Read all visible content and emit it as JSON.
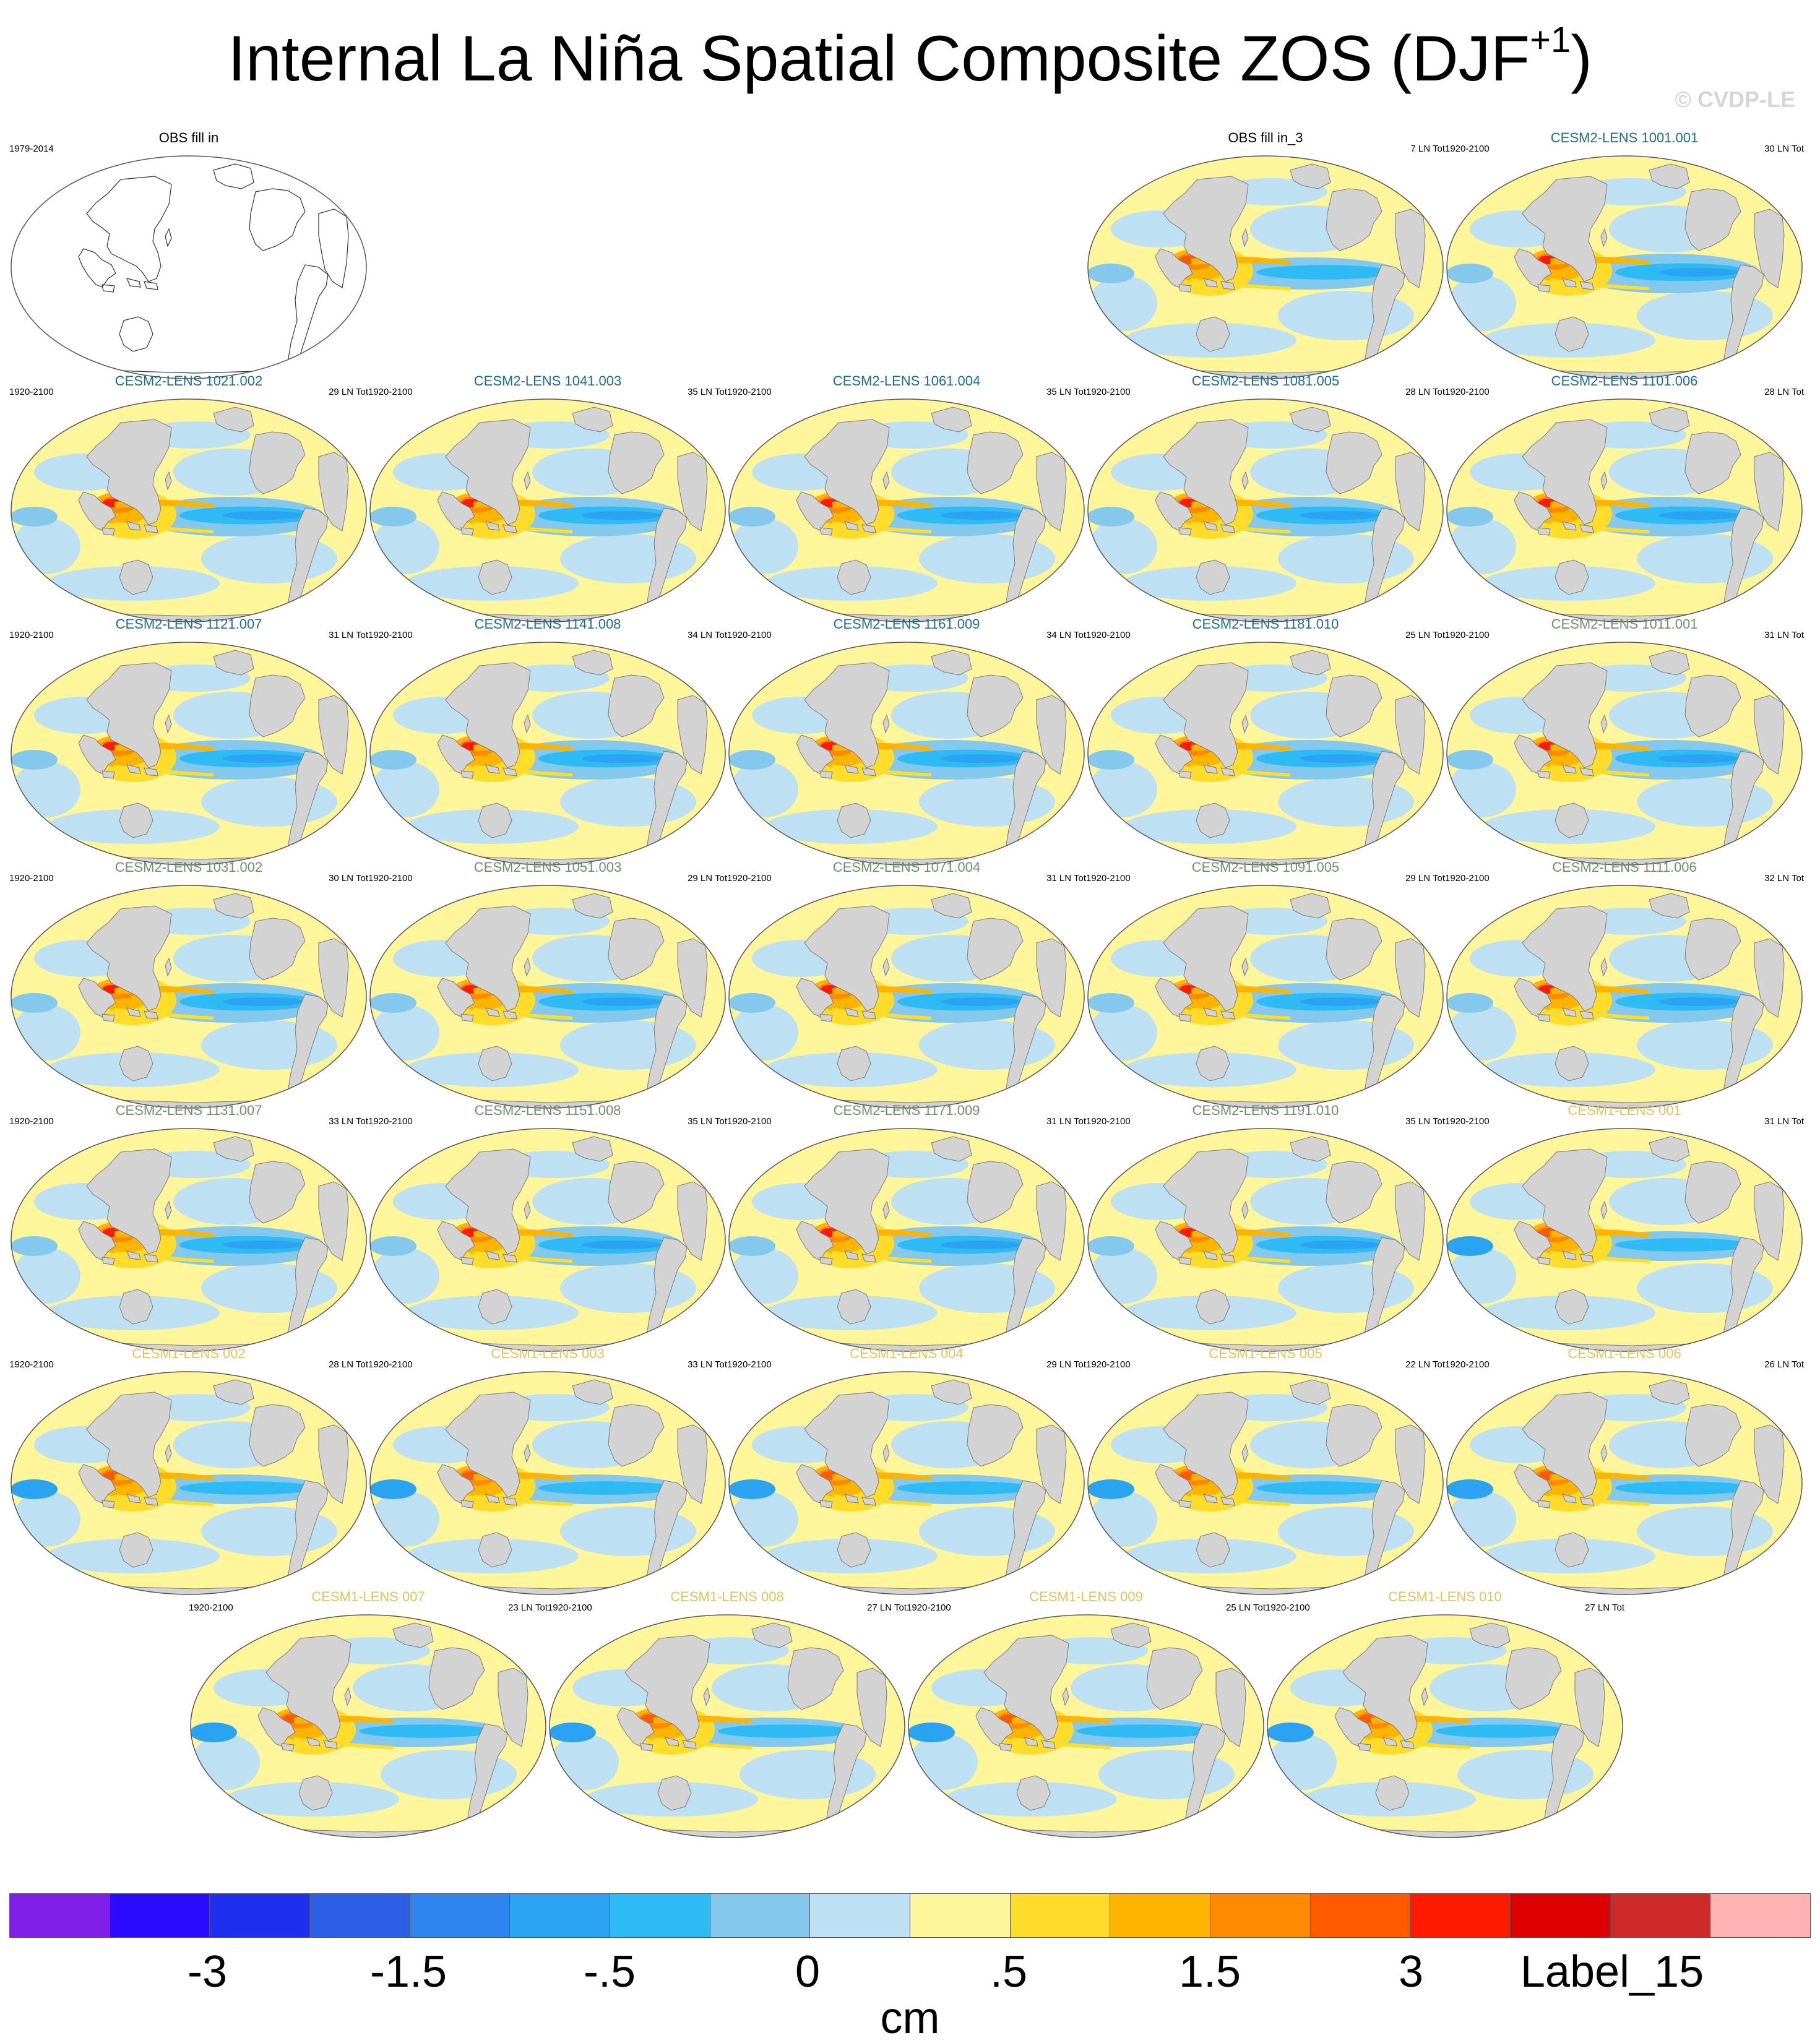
{
  "title": {
    "text": "Internal La Niña Spatial Composite ZOS (DJF",
    "sup": "+1",
    "suffix": ")"
  },
  "copyright": "© CVDP-LE",
  "units": "cm",
  "chart_data": {
    "type": "heatmap",
    "title": "Internal La Niña Spatial Composite ZOS (DJF+1)",
    "units": "cm",
    "colorbar": {
      "tick_labels": [
        "-3",
        "-1.5",
        "-.5",
        "0",
        ".5",
        "1.5",
        "3",
        "Label_15"
      ],
      "colors": [
        "#7f1fe8",
        "#2a0bff",
        "#1e2ff0",
        "#2d5fe6",
        "#2e85ef",
        "#2aa3f3",
        "#2dbaf5",
        "#85c8ee",
        "#bde0f2",
        "#fff59a",
        "#ffdd2a",
        "#ffb400",
        "#ff8a00",
        "#ff5a00",
        "#ff1a00",
        "#dd0000",
        "#cf2a2a",
        "#ffb2b2"
      ]
    },
    "panels": [
      {
        "title": "OBS fill in",
        "period": "1979-2014",
        "count": "",
        "title_color": "#000000",
        "style": "empty"
      },
      {
        "title": "OBS fill in_3",
        "period": "",
        "count": "7 LN Tot",
        "title_color": "#000000",
        "style": "obs"
      },
      {
        "title": "CESM2-LENS 1001.001",
        "period": "1920-2100",
        "count": "30 LN Tot",
        "title_color": "#1b6f8f",
        "style": "c2"
      },
      {
        "title": "CESM2-LENS 1021.002",
        "period": "1920-2100",
        "count": "29 LN Tot",
        "title_color": "#1b6f8f",
        "style": "c2"
      },
      {
        "title": "CESM2-LENS 1041.003",
        "period": "1920-2100",
        "count": "35 LN Tot",
        "title_color": "#1b6f8f",
        "style": "c2"
      },
      {
        "title": "CESM2-LENS 1061.004",
        "period": "1920-2100",
        "count": "35 LN Tot",
        "title_color": "#1b6f8f",
        "style": "c2"
      },
      {
        "title": "CESM2-LENS 1081.005",
        "period": "1920-2100",
        "count": "28 LN Tot",
        "title_color": "#1b6f8f",
        "style": "c2"
      },
      {
        "title": "CESM2-LENS 1101.006",
        "period": "1920-2100",
        "count": "28 LN Tot",
        "title_color": "#1b6f8f",
        "style": "c2"
      },
      {
        "title": "CESM2-LENS 1121.007",
        "period": "1920-2100",
        "count": "31 LN Tot",
        "title_color": "#1b6f8f",
        "style": "c2"
      },
      {
        "title": "CESM2-LENS 1141.008",
        "period": "1920-2100",
        "count": "34 LN Tot",
        "title_color": "#1b6f8f",
        "style": "c2"
      },
      {
        "title": "CESM2-LENS 1161.009",
        "period": "1920-2100",
        "count": "34 LN Tot",
        "title_color": "#1b6f8f",
        "style": "c2"
      },
      {
        "title": "CESM2-LENS 1181.010",
        "period": "1920-2100",
        "count": "25 LN Tot",
        "title_color": "#1b6f8f",
        "style": "c2"
      },
      {
        "title": "CESM2-LENS 1011.001",
        "period": "1920-2100",
        "count": "31 LN Tot",
        "title_color": "#6e8f6a",
        "style": "c2"
      },
      {
        "title": "CESM2-LENS 1031.002",
        "period": "1920-2100",
        "count": "30 LN Tot",
        "title_color": "#6e8f6a",
        "style": "c2"
      },
      {
        "title": "CESM2-LENS 1051.003",
        "period": "1920-2100",
        "count": "29 LN Tot",
        "title_color": "#6e8f6a",
        "style": "c2"
      },
      {
        "title": "CESM2-LENS 1071.004",
        "period": "1920-2100",
        "count": "31 LN Tot",
        "title_color": "#6e8f6a",
        "style": "c2"
      },
      {
        "title": "CESM2-LENS 1091.005",
        "period": "1920-2100",
        "count": "29 LN Tot",
        "title_color": "#6e8f6a",
        "style": "c2"
      },
      {
        "title": "CESM2-LENS 1111.006",
        "period": "1920-2100",
        "count": "32 LN Tot",
        "title_color": "#6e8f6a",
        "style": "c2"
      },
      {
        "title": "CESM2-LENS 1131.007",
        "period": "1920-2100",
        "count": "33 LN Tot",
        "title_color": "#6e8f6a",
        "style": "c2"
      },
      {
        "title": "CESM2-LENS 1151.008",
        "period": "1920-2100",
        "count": "35 LN Tot",
        "title_color": "#6e8f6a",
        "style": "c2"
      },
      {
        "title": "CESM2-LENS 1171.009",
        "period": "1920-2100",
        "count": "31 LN Tot",
        "title_color": "#6e8f6a",
        "style": "c2"
      },
      {
        "title": "CESM2-LENS 1191.010",
        "period": "1920-2100",
        "count": "35 LN Tot",
        "title_color": "#6e8f6a",
        "style": "c2"
      },
      {
        "title": "CESM1-LENS 001",
        "period": "1920-2100",
        "count": "31 LN Tot",
        "title_color": "#e6c25a",
        "style": "c1"
      },
      {
        "title": "CESM1-LENS 002",
        "period": "1920-2100",
        "count": "28 LN Tot",
        "title_color": "#e6c25a",
        "style": "c1"
      },
      {
        "title": "CESM1-LENS 003",
        "period": "1920-2100",
        "count": "33 LN Tot",
        "title_color": "#e6c25a",
        "style": "c1"
      },
      {
        "title": "CESM1-LENS 004",
        "period": "1920-2100",
        "count": "29 LN Tot",
        "title_color": "#e6c25a",
        "style": "c1"
      },
      {
        "title": "CESM1-LENS 005",
        "period": "1920-2100",
        "count": "22 LN Tot",
        "title_color": "#e6c25a",
        "style": "c1"
      },
      {
        "title": "CESM1-LENS 006",
        "period": "1920-2100",
        "count": "26 LN Tot",
        "title_color": "#e6c25a",
        "style": "c1"
      },
      {
        "title": "CESM1-LENS 007",
        "period": "1920-2100",
        "count": "23 LN Tot",
        "title_color": "#e6c25a",
        "style": "c1"
      },
      {
        "title": "CESM1-LENS 008",
        "period": "1920-2100",
        "count": "27 LN Tot",
        "title_color": "#e6c25a",
        "style": "c1"
      },
      {
        "title": "CESM1-LENS 009",
        "period": "1920-2100",
        "count": "25 LN Tot",
        "title_color": "#e6c25a",
        "style": "c1"
      },
      {
        "title": "CESM1-LENS 010",
        "period": "1920-2100",
        "count": "27 LN Tot",
        "title_color": "#e6c25a",
        "style": "c1"
      }
    ]
  }
}
